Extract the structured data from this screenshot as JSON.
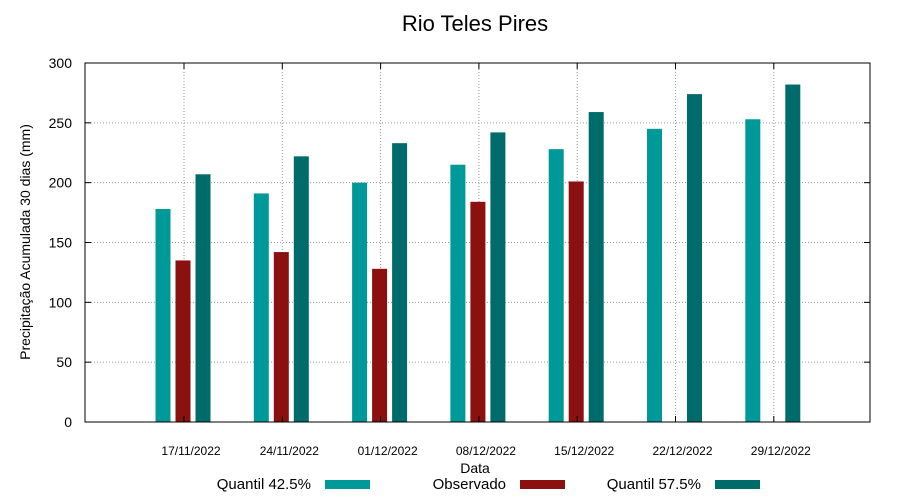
{
  "chart_data": {
    "type": "bar",
    "title": "Rio Teles Pires",
    "xlabel": "Data",
    "ylabel": "Precipitação Acumulada 30 dias (mm)",
    "ylim": [
      0,
      300
    ],
    "yticks": [
      0,
      50,
      100,
      150,
      200,
      250,
      300
    ],
    "grid": true,
    "legend_position": "bottom",
    "categories": [
      "17/11/2022",
      "24/11/2022",
      "01/12/2022",
      "08/12/2022",
      "15/12/2022",
      "22/12/2022",
      "29/12/2022"
    ],
    "series": [
      {
        "name": "Quantil 42.5%",
        "color": "#009999",
        "values": [
          178,
          191,
          200,
          215,
          228,
          245,
          253
        ]
      },
      {
        "name": "Observado",
        "color": "#8b1010",
        "values": [
          135,
          142,
          128,
          184,
          201,
          null,
          null
        ]
      },
      {
        "name": "Quantil 57.5%",
        "color": "#006b6b",
        "values": [
          207,
          222,
          233,
          242,
          259,
          274,
          282
        ]
      }
    ]
  }
}
